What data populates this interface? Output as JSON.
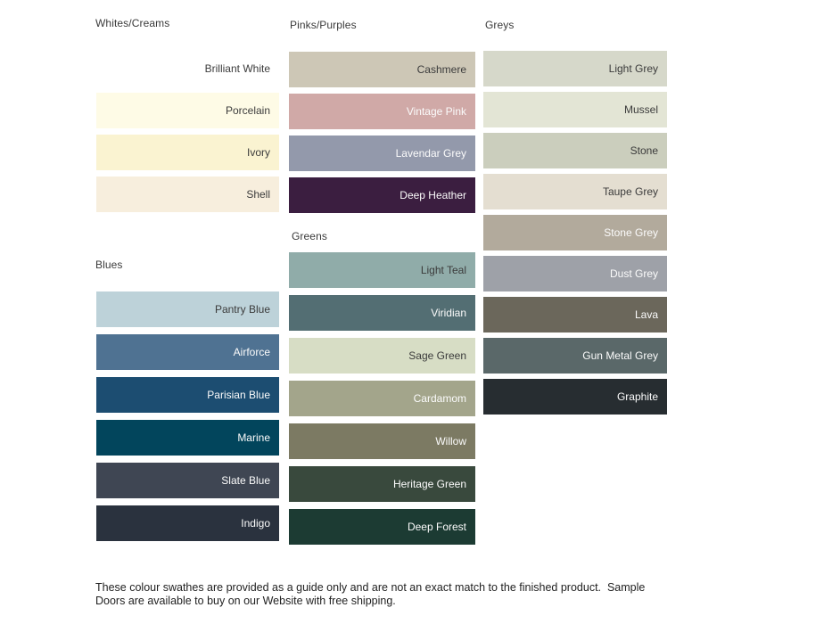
{
  "page": {
    "background": "#ffffff",
    "text_dark": "#3b3b3b",
    "text_light": "#fbfbfb"
  },
  "palette": {
    "whites_creams": {
      "header": "Whites/Creams",
      "swatches": [
        {
          "name": "Brilliant White",
          "color": "#ffffff",
          "text": "dark"
        },
        {
          "name": "Porcelain",
          "color": "#fefbe6",
          "text": "dark"
        },
        {
          "name": "Ivory",
          "color": "#faf3d1",
          "text": "dark"
        },
        {
          "name": "Shell",
          "color": "#f7eedd",
          "text": "dark"
        }
      ]
    },
    "blues": {
      "header": "Blues",
      "swatches": [
        {
          "name": "Pantry Blue",
          "color": "#bdd2d9",
          "text": "dark"
        },
        {
          "name": "Airforce",
          "color": "#4f7292",
          "text": "light"
        },
        {
          "name": "Parisian Blue",
          "color": "#1c4d71",
          "text": "light"
        },
        {
          "name": "Marine",
          "color": "#02455c",
          "text": "light"
        },
        {
          "name": "Slate Blue",
          "color": "#3f4653",
          "text": "light"
        },
        {
          "name": "Indigo",
          "color": "#2a323e",
          "text": "light"
        }
      ]
    },
    "pinks_purples": {
      "header": "Pinks/Purples",
      "swatches": [
        {
          "name": "Cashmere",
          "color": "#cdc7b6",
          "text": "dark"
        },
        {
          "name": "Vintage Pink",
          "color": "#d0a9a7",
          "text": "light"
        },
        {
          "name": "Lavendar Grey",
          "color": "#9399ab",
          "text": "light"
        },
        {
          "name": "Deep Heather",
          "color": "#3b1e40",
          "text": "light"
        }
      ]
    },
    "greens": {
      "header": "Greens",
      "swatches": [
        {
          "name": "Light Teal",
          "color": "#90aca9",
          "text": "dark"
        },
        {
          "name": "Viridian",
          "color": "#536e73",
          "text": "light"
        },
        {
          "name": "Sage Green",
          "color": "#d7ddc5",
          "text": "dark"
        },
        {
          "name": "Cardamom",
          "color": "#a3a58b",
          "text": "light"
        },
        {
          "name": "Willow",
          "color": "#7c7a63",
          "text": "light"
        },
        {
          "name": "Heritage Green",
          "color": "#39493d",
          "text": "light"
        },
        {
          "name": "Deep Forest",
          "color": "#1c3b33",
          "text": "light"
        }
      ]
    },
    "greys": {
      "header": "Greys",
      "swatches": [
        {
          "name": "Light Grey",
          "color": "#d6d8ca",
          "text": "dark"
        },
        {
          "name": "Mussel",
          "color": "#e3e5d5",
          "text": "dark"
        },
        {
          "name": "Stone",
          "color": "#cbcebd",
          "text": "dark"
        },
        {
          "name": "Taupe Grey",
          "color": "#e4ded1",
          "text": "dark"
        },
        {
          "name": "Stone Grey",
          "color": "#b2aa9c",
          "text": "light"
        },
        {
          "name": "Dust Grey",
          "color": "#9ea1a8",
          "text": "light"
        },
        {
          "name": "Lava",
          "color": "#6b675b",
          "text": "light"
        },
        {
          "name": "Gun Metal Grey",
          "color": "#5a6869",
          "text": "light"
        },
        {
          "name": "Graphite",
          "color": "#272d31",
          "text": "light"
        }
      ]
    }
  },
  "footer": {
    "lines": [
      "These colour swathes are provided as a guide only and are not an exact match to the finished product.  Sample",
      "Doors are available to buy on our Website with free shipping."
    ]
  }
}
